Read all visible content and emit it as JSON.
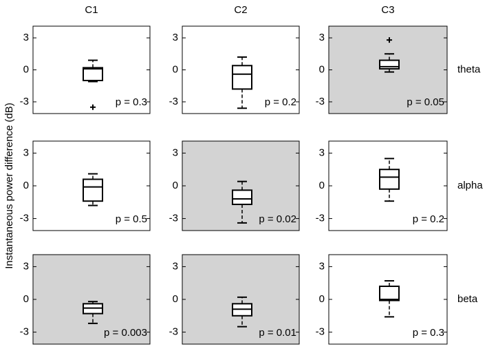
{
  "chart_data": {
    "type": "box",
    "ylabel": "Instantaneous power difference (dB)",
    "columns": [
      "C1",
      "C2",
      "C3"
    ],
    "rows": [
      "theta",
      "alpha",
      "beta"
    ],
    "ylim": [
      -4.1,
      4.1
    ],
    "yticks": [
      -3,
      0,
      3
    ],
    "shade_color": "#d3d3d3",
    "color": "#000000",
    "panels": [
      {
        "whisker_low": -1.1,
        "q1": -1.0,
        "median": 0.1,
        "q3": 0.2,
        "whisker_high": 0.9,
        "outliers": [
          -3.5
        ],
        "annotation": "p = 0.3",
        "shaded": false
      },
      {
        "whisker_low": -3.6,
        "q1": -1.8,
        "median": -0.4,
        "q3": 0.4,
        "whisker_high": 1.2,
        "annotation": "p = 0.2",
        "shaded": false
      },
      {
        "whisker_low": -0.2,
        "q1": 0.1,
        "median": 0.3,
        "q3": 0.9,
        "whisker_high": 1.5,
        "outliers": [
          2.8
        ],
        "annotation": "p = 0.05",
        "shaded": true
      },
      {
        "whisker_low": -1.8,
        "q1": -1.4,
        "median": -0.1,
        "q3": 0.6,
        "whisker_high": 1.1,
        "annotation": "p = 0.5",
        "shaded": false
      },
      {
        "whisker_low": -3.4,
        "q1": -1.7,
        "median": -1.2,
        "q3": -0.4,
        "whisker_high": 0.4,
        "annotation": "p = 0.02",
        "shaded": true
      },
      {
        "whisker_low": -1.4,
        "q1": -0.3,
        "median": 0.8,
        "q3": 1.5,
        "whisker_high": 2.5,
        "annotation": "p = 0.2",
        "shaded": false
      },
      {
        "whisker_low": -2.2,
        "q1": -1.3,
        "median": -0.8,
        "q3": -0.4,
        "whisker_high": -0.2,
        "annotation": "p = 0.003",
        "shaded": true
      },
      {
        "whisker_low": -2.5,
        "q1": -1.5,
        "median": -0.9,
        "q3": -0.4,
        "whisker_high": 0.2,
        "annotation": "p = 0.01",
        "shaded": true
      },
      {
        "whisker_low": -1.6,
        "q1": -0.1,
        "median": 0.0,
        "q3": 1.2,
        "whisker_high": 1.7,
        "annotation": "p = 0.3",
        "shaded": false
      }
    ]
  }
}
